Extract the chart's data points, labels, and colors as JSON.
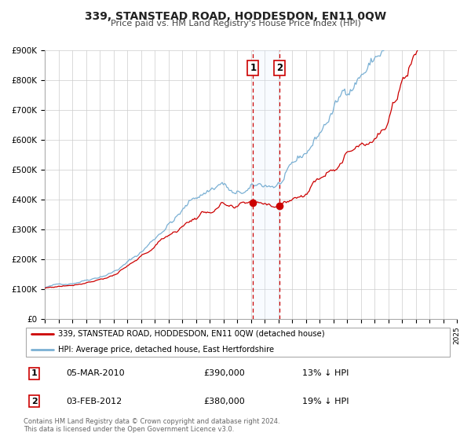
{
  "title": "339, STANSTEAD ROAD, HODDESDON, EN11 0QW",
  "subtitle": "Price paid vs. HM Land Registry's House Price Index (HPI)",
  "legend_line1": "339, STANSTEAD ROAD, HODDESDON, EN11 0QW (detached house)",
  "legend_line2": "HPI: Average price, detached house, East Hertfordshire",
  "footer1": "Contains HM Land Registry data © Crown copyright and database right 2024.",
  "footer2": "This data is licensed under the Open Government Licence v3.0.",
  "table": [
    {
      "num": "1",
      "date": "05-MAR-2010",
      "price": "£390,000",
      "pct": "13% ↓ HPI"
    },
    {
      "num": "2",
      "date": "03-FEB-2012",
      "price": "£380,000",
      "pct": "19% ↓ HPI"
    }
  ],
  "sale1_x": 2010.17,
  "sale1_y": 390000,
  "sale2_x": 2012.08,
  "sale2_y": 380000,
  "vline1_x": 2010.17,
  "vline2_x": 2012.08,
  "shade_x1": 2010.17,
  "shade_x2": 2012.08,
  "red_color": "#cc0000",
  "blue_color": "#7ab0d4",
  "shade_color": "#ddeeff",
  "grid_color": "#cccccc",
  "bg_color": "#ffffff",
  "xmin": 1995,
  "xmax": 2025,
  "ymin": 0,
  "ymax": 900000,
  "yticks": [
    0,
    100000,
    200000,
    300000,
    400000,
    500000,
    600000,
    700000,
    800000,
    900000
  ],
  "ytick_labels": [
    "£0",
    "£100K",
    "£200K",
    "£300K",
    "£400K",
    "£500K",
    "£600K",
    "£700K",
    "£800K",
    "£900K"
  ]
}
